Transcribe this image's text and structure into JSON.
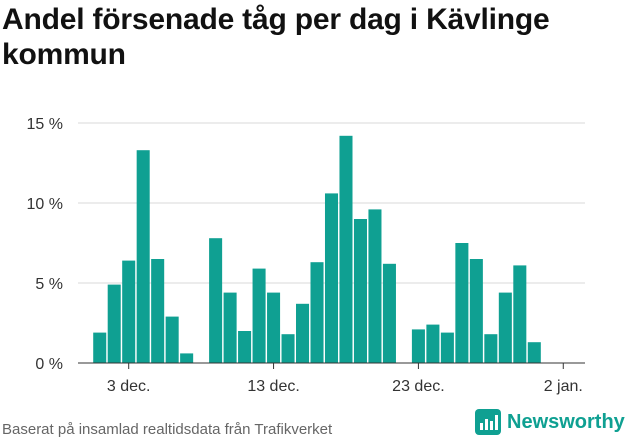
{
  "chart_data": {
    "type": "bar",
    "title": "Andel försenade tåg per dag i Kävlinge kommun",
    "xlabel": "",
    "ylabel": "",
    "ylim": [
      0,
      15
    ],
    "y_ticks": [
      0,
      5,
      10,
      15
    ],
    "y_tick_labels": [
      "0 %",
      "5 %",
      "10 %",
      "15 %"
    ],
    "x_ticks": [
      "3 dec.",
      "13 dec.",
      "23 dec.",
      "2 jan."
    ],
    "x_tick_positions": [
      3,
      13,
      23,
      33
    ],
    "x_range": [
      -0.5,
      34.5
    ],
    "grid": true,
    "bar_color": "#0fa092",
    "x": [
      1,
      2,
      3,
      4,
      5,
      6,
      7,
      8,
      9,
      10,
      11,
      12,
      13,
      14,
      15,
      16,
      17,
      18,
      19,
      20,
      21,
      22,
      23,
      24,
      25,
      26,
      27,
      28,
      29,
      30,
      31,
      32,
      33
    ],
    "values": [
      1.9,
      4.9,
      6.4,
      13.3,
      6.5,
      2.9,
      0.6,
      null,
      7.8,
      4.4,
      2.0,
      5.9,
      4.4,
      1.8,
      3.7,
      6.3,
      10.6,
      14.2,
      9.0,
      9.6,
      6.2,
      null,
      2.1,
      2.4,
      1.9,
      7.5,
      6.5,
      1.8,
      4.4,
      6.1,
      1.3,
      null,
      null
    ]
  },
  "footer": {
    "source": "Baserat på insamlad realtidsdata från Trafikverket",
    "brand": "Newsworthy",
    "brand_color": "#0fa092"
  }
}
